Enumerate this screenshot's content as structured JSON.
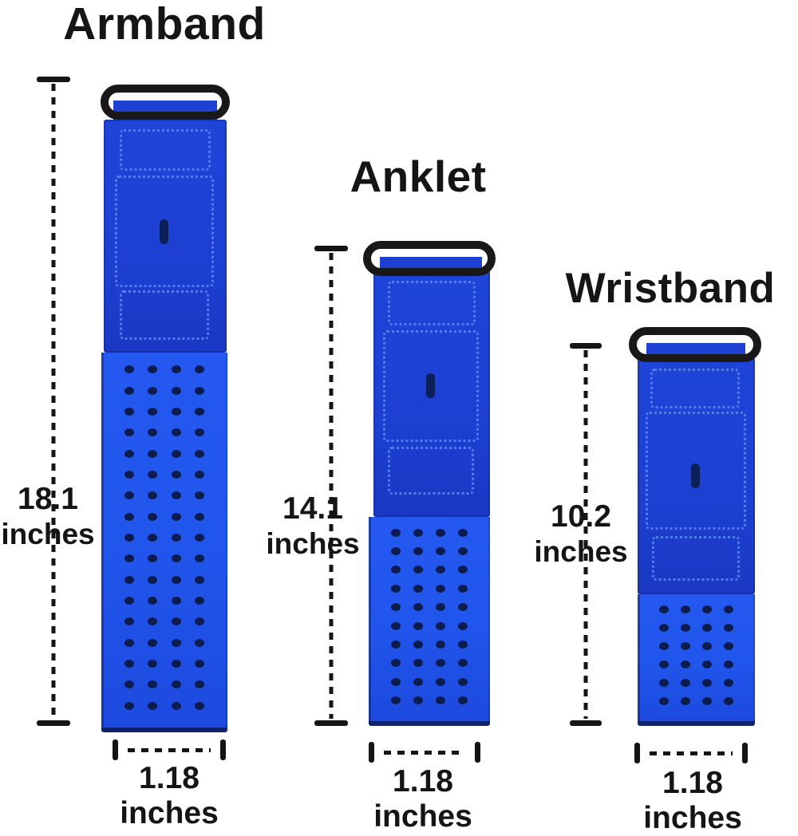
{
  "image_type": "product-dimension-diagram",
  "colors": {
    "ink": "#151515",
    "buckle": "#181818",
    "strap_dark": "#1d40d2",
    "strap_bright": "#2156ec",
    "hole": "#0c1c4e",
    "stitch": "#5585ee"
  },
  "bands": [
    {
      "id": "armband",
      "title": "Armband",
      "length_value": "18.1",
      "length_unit": "inches",
      "width_label": "1.18 inches",
      "perforation": {
        "rows": 17,
        "columns": 4
      }
    },
    {
      "id": "anklet",
      "title": "Anklet",
      "length_value": "14.1",
      "length_unit": "inches",
      "width_label": "1.18 inches",
      "perforation": {
        "rows": 10,
        "columns": 4
      }
    },
    {
      "id": "wristband",
      "title": "Wristband",
      "length_value": "10.2",
      "length_unit": "inches",
      "width_label": "1.18 inches",
      "perforation": {
        "rows": 6,
        "columns": 4
      }
    }
  ]
}
